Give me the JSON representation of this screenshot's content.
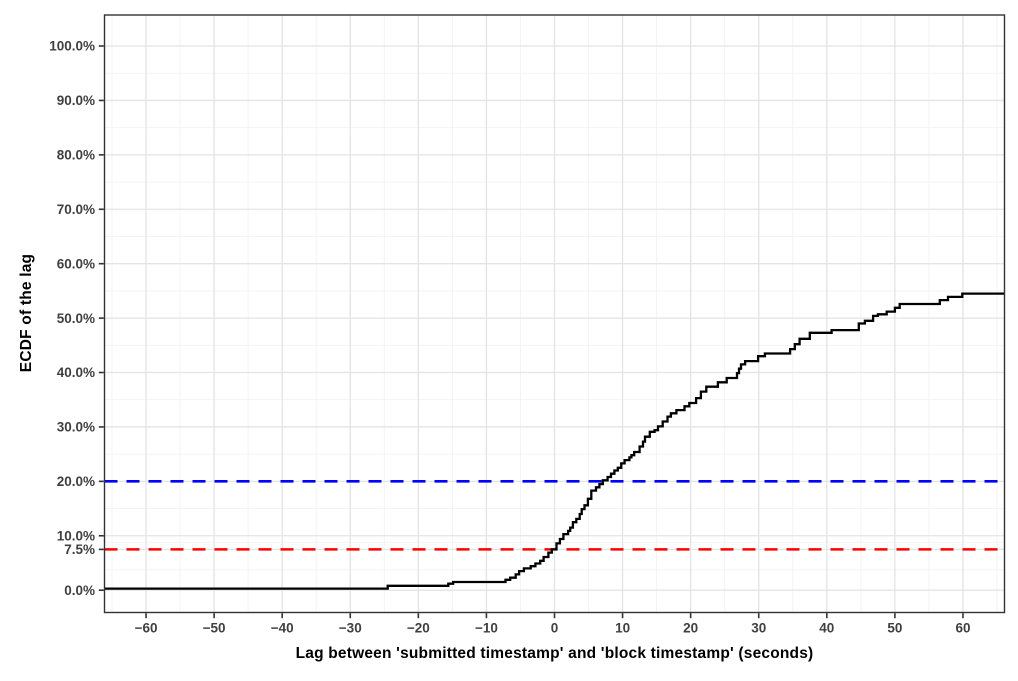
{
  "chart_data": {
    "type": "line",
    "subtype": "ecdf-step",
    "title": "",
    "xlabel": "Lag between 'submitted timestamp' and 'block timestamp' (seconds)",
    "ylabel": "ECDF of the lag",
    "grid": true,
    "legend": false,
    "x_axis": {
      "range": [
        -66.1,
        66.1
      ],
      "ticks": [
        -60,
        -50,
        -40,
        -30,
        -20,
        -10,
        0,
        10,
        20,
        30,
        40,
        50,
        60
      ],
      "tick_labels": [
        "−60",
        "−50",
        "−40",
        "−30",
        "−20",
        "−10",
        "0",
        "10",
        "20",
        "30",
        "40",
        "50",
        "60"
      ],
      "minor_ticks": [
        -65,
        -55,
        -45,
        -35,
        -25,
        -15,
        -5,
        5,
        15,
        25,
        35,
        45,
        55,
        65
      ]
    },
    "y_axis": {
      "range": [
        -4.1,
        105.7
      ],
      "ticks": [
        0,
        7.5,
        10,
        20,
        30,
        40,
        50,
        60,
        70,
        80,
        90,
        100
      ],
      "tick_labels": [
        "0.0%",
        "7.5%",
        "10.0%",
        "20.0%",
        "30.0%",
        "40.0%",
        "50.0%",
        "60.0%",
        "70.0%",
        "80.0%",
        "90.0%",
        "100.0%"
      ],
      "minor_ticks": [
        3.75,
        8.75,
        15,
        25,
        35,
        45,
        55,
        65,
        75,
        85,
        95
      ]
    },
    "reference_lines": [
      {
        "name": "blue-20-percent-line",
        "y": 20,
        "color": "#0000FF",
        "style": "dashed"
      },
      {
        "name": "red-7.5-percent-line",
        "y": 7.5,
        "color": "#FF0000",
        "style": "dashed"
      }
    ],
    "series": [
      {
        "name": "ECDF of the lag",
        "type": "step",
        "color": "#000000",
        "points": [
          [
            -66.1,
            0.3
          ],
          [
            -24.5,
            0.8
          ],
          [
            -15.6,
            1.2
          ],
          [
            -14.9,
            1.5
          ],
          [
            -7.2,
            1.9
          ],
          [
            -6.5,
            2.3
          ],
          [
            -5.7,
            2.9
          ],
          [
            -5.2,
            3.5
          ],
          [
            -4.5,
            4.0
          ],
          [
            -3.5,
            4.4
          ],
          [
            -2.8,
            4.9
          ],
          [
            -2.1,
            5.4
          ],
          [
            -1.6,
            6.1
          ],
          [
            -0.9,
            6.9
          ],
          [
            -0.4,
            7.5
          ],
          [
            0.3,
            8.6
          ],
          [
            0.8,
            9.4
          ],
          [
            1.3,
            10.3
          ],
          [
            2.0,
            10.9
          ],
          [
            2.3,
            11.5
          ],
          [
            2.7,
            12.5
          ],
          [
            3.2,
            13.1
          ],
          [
            3.7,
            14.0
          ],
          [
            4.0,
            14.9
          ],
          [
            4.4,
            15.6
          ],
          [
            4.9,
            16.8
          ],
          [
            5.4,
            18.3
          ],
          [
            6.1,
            18.9
          ],
          [
            6.6,
            19.5
          ],
          [
            7.1,
            20.2
          ],
          [
            7.8,
            20.8
          ],
          [
            8.3,
            21.4
          ],
          [
            8.8,
            22.0
          ],
          [
            9.3,
            22.5
          ],
          [
            9.8,
            23.3
          ],
          [
            10.3,
            23.9
          ],
          [
            11.0,
            24.4
          ],
          [
            11.3,
            24.8
          ],
          [
            11.7,
            25.4
          ],
          [
            12.5,
            26.4
          ],
          [
            13.0,
            27.3
          ],
          [
            13.3,
            28.2
          ],
          [
            14.0,
            29.1
          ],
          [
            14.7,
            29.4
          ],
          [
            15.2,
            30.1
          ],
          [
            15.9,
            31.0
          ],
          [
            16.6,
            31.9
          ],
          [
            17.1,
            32.5
          ],
          [
            17.9,
            33.1
          ],
          [
            19.1,
            33.8
          ],
          [
            19.8,
            34.4
          ],
          [
            20.8,
            35.3
          ],
          [
            21.5,
            36.5
          ],
          [
            22.3,
            37.4
          ],
          [
            24.0,
            38.2
          ],
          [
            25.3,
            39.0
          ],
          [
            26.8,
            39.9
          ],
          [
            27.1,
            40.7
          ],
          [
            27.4,
            41.5
          ],
          [
            28.0,
            42.1
          ],
          [
            29.9,
            43.0
          ],
          [
            30.9,
            43.5
          ],
          [
            34.6,
            44.3
          ],
          [
            35.3,
            45.2
          ],
          [
            36.0,
            46.2
          ],
          [
            37.5,
            47.3
          ],
          [
            40.7,
            47.8
          ],
          [
            44.7,
            49.0
          ],
          [
            45.6,
            49.5
          ],
          [
            46.8,
            50.4
          ],
          [
            47.5,
            50.7
          ],
          [
            48.8,
            51.2
          ],
          [
            50.0,
            51.9
          ],
          [
            50.7,
            52.6
          ],
          [
            56.6,
            53.3
          ],
          [
            57.8,
            53.9
          ],
          [
            59.9,
            54.5
          ]
        ]
      }
    ],
    "colors": {
      "background": "#FFFFFF",
      "panel_border": "#333333",
      "grid_major": "#E4E4E4",
      "grid_minor": "#F2F2F2",
      "tick": "#333333",
      "tick_label": "#404040",
      "axis_title": "#000000"
    }
  }
}
